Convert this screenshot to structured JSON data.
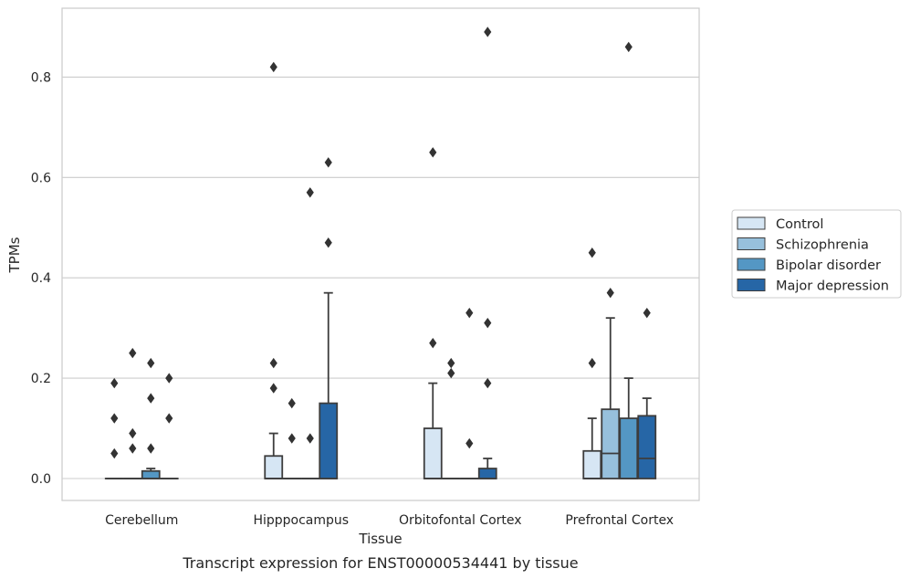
{
  "chart_data": {
    "type": "box",
    "xlabel": "Tissue",
    "ylabel": "TPMs",
    "caption": "Transcript expression for ENST00000534441 by tissue",
    "ylim": [
      -0.045,
      0.94
    ],
    "yticks": [
      0.0,
      0.2,
      0.4,
      0.6,
      0.8
    ],
    "ytick_labels": [
      "0.0",
      "0.2",
      "0.4",
      "0.6",
      "0.8"
    ],
    "categories": [
      "Cerebellum",
      "Hipppocampus",
      "Orbitofontal Cortex",
      "Prefrontal Cortex"
    ],
    "grid": "horizontal",
    "legend_position": "right",
    "series": [
      {
        "name": "Control",
        "color": "#d6e6f4",
        "boxes": [
          {
            "q1": 0.0,
            "median": 0.0,
            "q3": 0.0,
            "whisker_low": 0.0,
            "whisker_high": 0.0,
            "outliers": [
              0.05,
              0.12,
              0.19
            ]
          },
          {
            "q1": 0.0,
            "median": 0.0,
            "q3": 0.045,
            "whisker_low": 0.0,
            "whisker_high": 0.09,
            "outliers": [
              0.18,
              0.23,
              0.82
            ]
          },
          {
            "q1": 0.0,
            "median": 0.0,
            "q3": 0.1,
            "whisker_low": 0.0,
            "whisker_high": 0.19,
            "outliers": [
              0.27,
              0.65
            ]
          },
          {
            "q1": 0.0,
            "median": 0.0,
            "q3": 0.055,
            "whisker_low": 0.0,
            "whisker_high": 0.12,
            "outliers": [
              0.23,
              0.45
            ]
          }
        ]
      },
      {
        "name": "Schizophrenia",
        "color": "#97c0dc",
        "boxes": [
          {
            "q1": 0.0,
            "median": 0.0,
            "q3": 0.0,
            "whisker_low": 0.0,
            "whisker_high": 0.0,
            "outliers": [
              0.06,
              0.09,
              0.25
            ]
          },
          {
            "q1": 0.0,
            "median": 0.0,
            "q3": 0.0,
            "whisker_low": 0.0,
            "whisker_high": 0.0,
            "outliers": [
              0.08,
              0.15
            ]
          },
          {
            "q1": 0.0,
            "median": 0.0,
            "q3": 0.0,
            "whisker_low": 0.0,
            "whisker_high": 0.0,
            "outliers": [
              0.21,
              0.23
            ]
          },
          {
            "q1": 0.0,
            "median": 0.05,
            "q3": 0.138,
            "whisker_low": 0.0,
            "whisker_high": 0.32,
            "outliers": [
              0.37
            ]
          }
        ]
      },
      {
        "name": "Bipolar disorder",
        "color": "#5497c4",
        "boxes": [
          {
            "q1": 0.0,
            "median": 0.0,
            "q3": 0.015,
            "whisker_low": 0.0,
            "whisker_high": 0.02,
            "outliers": [
              0.06,
              0.16,
              0.23
            ]
          },
          {
            "q1": 0.0,
            "median": 0.0,
            "q3": 0.0,
            "whisker_low": 0.0,
            "whisker_high": 0.0,
            "outliers": [
              0.08,
              0.57
            ]
          },
          {
            "q1": 0.0,
            "median": 0.0,
            "q3": 0.0,
            "whisker_low": 0.0,
            "whisker_high": 0.0,
            "outliers": [
              0.07,
              0.33
            ]
          },
          {
            "q1": 0.0,
            "median": 0.0,
            "q3": 0.12,
            "whisker_low": 0.0,
            "whisker_high": 0.2,
            "outliers": [
              0.86
            ]
          }
        ]
      },
      {
        "name": "Major depression",
        "color": "#2666a6",
        "boxes": [
          {
            "q1": 0.0,
            "median": 0.0,
            "q3": 0.0,
            "whisker_low": 0.0,
            "whisker_high": 0.0,
            "outliers": [
              0.12,
              0.2
            ]
          },
          {
            "q1": 0.0,
            "median": 0.0,
            "q3": 0.15,
            "whisker_low": 0.0,
            "whisker_high": 0.37,
            "outliers": [
              0.47,
              0.63
            ]
          },
          {
            "q1": 0.0,
            "median": 0.0,
            "q3": 0.02,
            "whisker_low": 0.0,
            "whisker_high": 0.04,
            "outliers": [
              0.19,
              0.31,
              0.89
            ]
          },
          {
            "q1": 0.0,
            "median": 0.04,
            "q3": 0.125,
            "whisker_low": 0.0,
            "whisker_high": 0.16,
            "outliers": [
              0.33
            ]
          }
        ]
      }
    ]
  }
}
